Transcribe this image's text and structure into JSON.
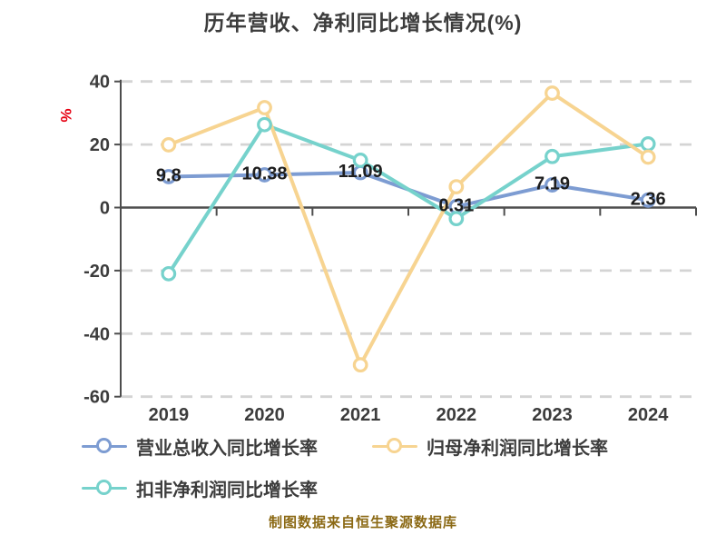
{
  "page": {
    "title": "历年营收、净利同比增长情况(%)",
    "footer_source": "制图数据来自恒生聚源数据库"
  },
  "chart_data": {
    "type": "line",
    "title": "历年营收、净利同比增长情况(%)",
    "xlabel": "",
    "ylabel": "%",
    "categories": [
      "2019",
      "2020",
      "2021",
      "2022",
      "2023",
      "2024"
    ],
    "ylim": [
      -60,
      40
    ],
    "yticks": [
      40,
      20,
      0,
      -20,
      -40,
      -60
    ],
    "grid": true,
    "legend_position": "bottom-left",
    "series": [
      {
        "name": "营业总收入同比增长率",
        "color": "#7D9CD2",
        "values": [
          9.8,
          10.38,
          11.09,
          0.31,
          7.19,
          2.36
        ],
        "point_labels": [
          "9.8",
          "10.38",
          "11.09",
          "0.31",
          "7.19",
          "2.36"
        ]
      },
      {
        "name": "归母净利润同比增长率",
        "color": "#F7D491",
        "values": [
          19.9,
          31.7,
          -49.9,
          6.6,
          36.3,
          16.0
        ],
        "point_labels": null
      },
      {
        "name": "扣非净利润同比增长率",
        "color": "#76D2CC",
        "values": [
          -21.0,
          26.3,
          15.0,
          -3.5,
          16.2,
          20.2
        ],
        "point_labels": null
      }
    ],
    "styles": {
      "grid_color": "#D4D4D4",
      "axis_color": "#4D4D4D",
      "tick_label_color": "#3C3C3C",
      "data_label_color": "#1E1E1E",
      "ylabel_color": "#E60012",
      "marker_fill": "#FFFFFF"
    }
  }
}
